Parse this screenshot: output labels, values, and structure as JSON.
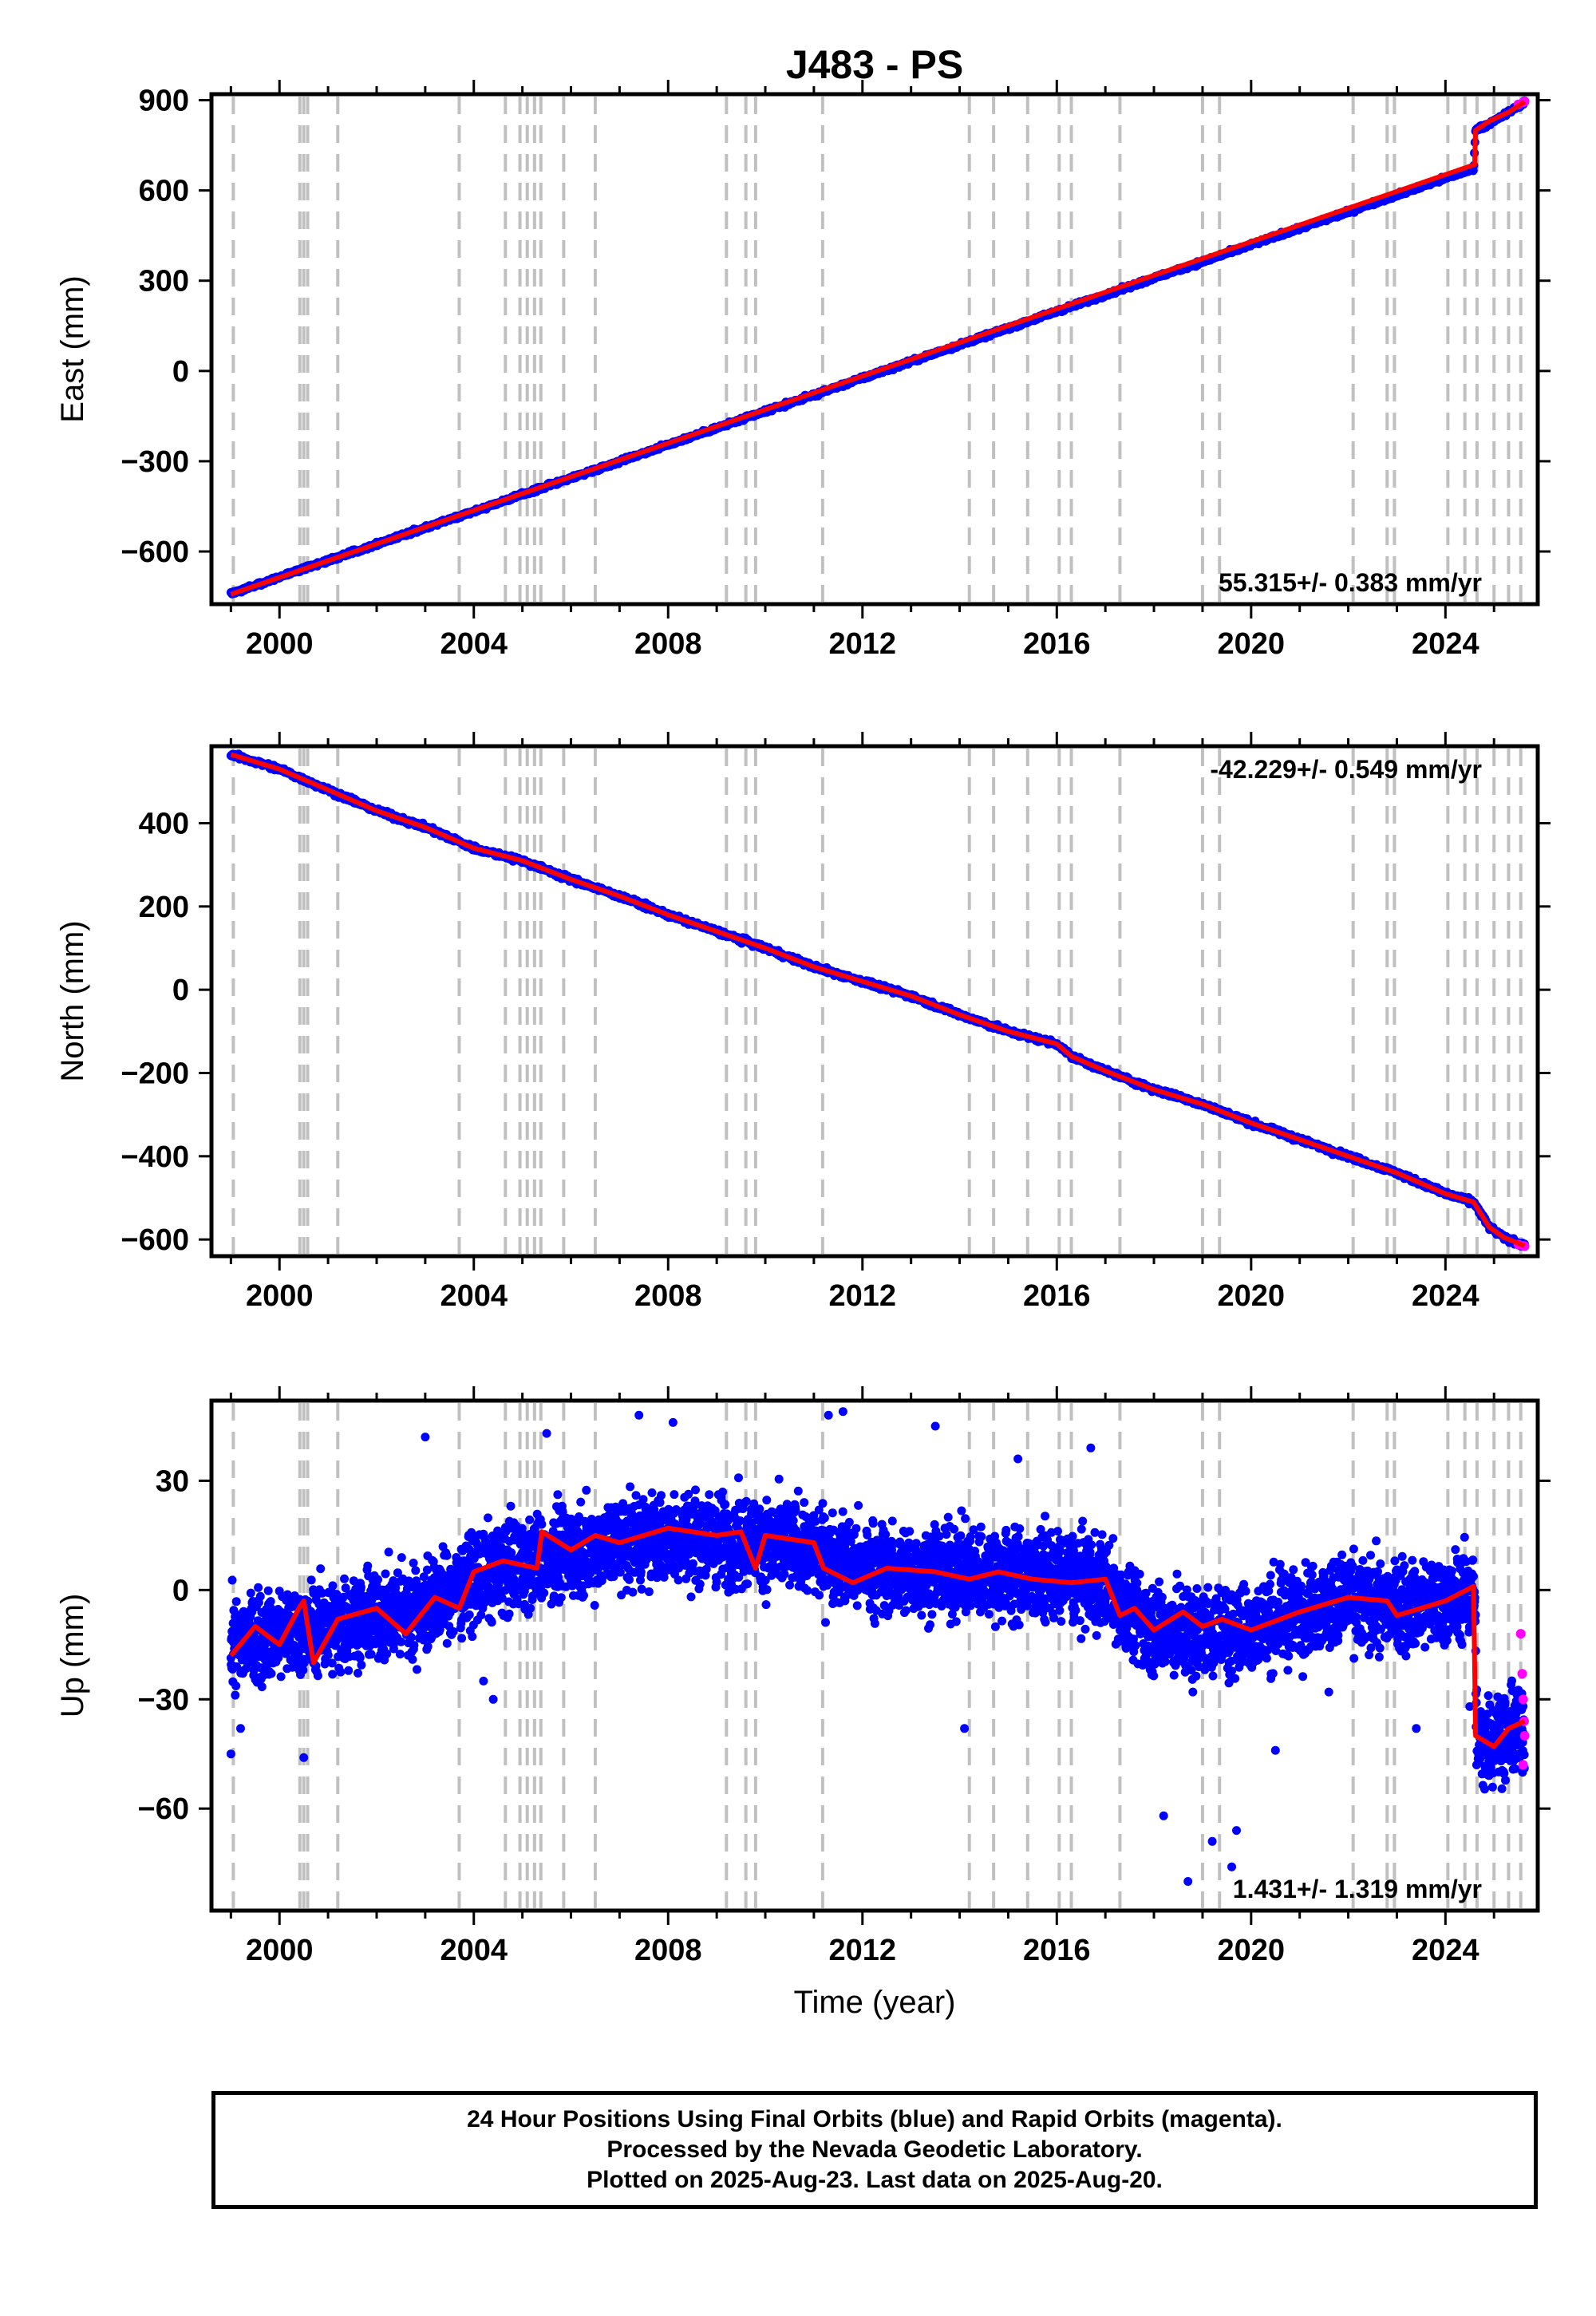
{
  "title": "J483 - PS",
  "xlabel": "Time (year)",
  "caption": {
    "line1": "24 Hour Positions Using Final Orbits (blue) and Rapid Orbits (magenta).",
    "line2": "Processed by the Nevada Geodetic Laboratory.",
    "line3": "Plotted on 2025-Aug-23. Last data on 2025-Aug-20."
  },
  "colors": {
    "final_orbits": "#0000ff",
    "rapid_orbits": "#ff00ff",
    "model_fit": "#ff0000",
    "event_lines": "#c0c0c0",
    "axes": "#000000"
  },
  "chart_data": [
    {
      "type": "scatter",
      "component": "East",
      "ylabel": "East (mm)",
      "xlim": [
        1998.6,
        2025.9
      ],
      "ylim": [
        -775,
        920
      ],
      "xticks": [
        2000,
        2004,
        2008,
        2012,
        2016,
        2020,
        2024
      ],
      "yticks": [
        -600,
        -300,
        0,
        300,
        600,
        900
      ],
      "ytick_labels": [
        "−600",
        "−300",
        "0",
        "300",
        "600",
        "900"
      ],
      "velocity_label": "55.315+/- 0.383 mm/yr",
      "velocity_label_position": "bottom-right",
      "series_points": [
        [
          1999.0,
          -740
        ],
        [
          2000.0,
          -685
        ],
        [
          2004.0,
          -466
        ],
        [
          2008.0,
          -245
        ],
        [
          2012.0,
          -24
        ],
        [
          2016.0,
          198
        ],
        [
          2020.0,
          419
        ],
        [
          2024.0,
          640
        ],
        [
          2024.58,
          672
        ],
        [
          2024.62,
          800
        ],
        [
          2025.0,
          830
        ],
        [
          2025.5,
          880
        ],
        [
          2025.63,
          895
        ]
      ],
      "model_fit": [
        [
          1999.0,
          -742
        ],
        [
          2024.6,
          686
        ],
        [
          2024.62,
          800
        ],
        [
          2024.9,
          830
        ],
        [
          2025.3,
          860
        ],
        [
          2025.63,
          895
        ]
      ],
      "rapid_orbit_points": [
        [
          2025.5,
          886
        ],
        [
          2025.6,
          893
        ],
        [
          2025.63,
          896
        ]
      ],
      "event_lines": [
        1999.05,
        2000.42,
        2000.5,
        2000.58,
        2001.2,
        2003.7,
        2004.65,
        2004.95,
        2005.1,
        2005.25,
        2005.38,
        2005.85,
        2006.5,
        2009.2,
        2009.6,
        2009.8,
        2011.18,
        2014.2,
        2014.7,
        2015.4,
        2016.05,
        2016.3,
        2017.3,
        2019.0,
        2019.35,
        2022.1,
        2022.8,
        2022.95,
        2024.05,
        2024.4,
        2024.65,
        2025.0,
        2025.3,
        2025.55
      ]
    },
    {
      "type": "scatter",
      "component": "North",
      "ylabel": "North (mm)",
      "xlim": [
        1998.6,
        2025.9
      ],
      "ylim": [
        -640,
        585
      ],
      "xticks": [
        2000,
        2004,
        2008,
        2012,
        2016,
        2020,
        2024
      ],
      "yticks": [
        -600,
        -400,
        -200,
        0,
        200,
        400
      ],
      "ytick_labels": [
        "−600",
        "−400",
        "−200",
        "0",
        "200",
        "400"
      ],
      "velocity_label": "-42.229+/- 0.549 mm/yr",
      "velocity_label_position": "top-right",
      "series_points": [
        [
          1999.0,
          565
        ],
        [
          2000.0,
          530
        ],
        [
          2001.0,
          480
        ],
        [
          2002.0,
          430
        ],
        [
          2003.0,
          390
        ],
        [
          2004.0,
          340
        ],
        [
          2005.0,
          310
        ],
        [
          2006.0,
          265
        ],
        [
          2007.0,
          225
        ],
        [
          2008.0,
          180
        ],
        [
          2009.0,
          140
        ],
        [
          2010.0,
          100
        ],
        [
          2011.0,
          55
        ],
        [
          2012.0,
          20
        ],
        [
          2013.0,
          -15
        ],
        [
          2014.0,
          -60
        ],
        [
          2015.0,
          -100
        ],
        [
          2016.0,
          -130
        ],
        [
          2016.3,
          -160
        ],
        [
          2017.0,
          -195
        ],
        [
          2018.0,
          -240
        ],
        [
          2019.0,
          -275
        ],
        [
          2020.0,
          -320
        ],
        [
          2021.0,
          -360
        ],
        [
          2022.0,
          -400
        ],
        [
          2023.0,
          -440
        ],
        [
          2024.0,
          -490
        ],
        [
          2024.58,
          -510
        ],
        [
          2024.9,
          -570
        ],
        [
          2025.2,
          -595
        ],
        [
          2025.63,
          -615
        ]
      ],
      "model_fit": [
        [
          1999.0,
          565
        ],
        [
          2000.0,
          530
        ],
        [
          2001.0,
          480
        ],
        [
          2002.0,
          430
        ],
        [
          2003.0,
          390
        ],
        [
          2004.0,
          340
        ],
        [
          2005.0,
          310
        ],
        [
          2006.0,
          265
        ],
        [
          2007.0,
          225
        ],
        [
          2008.0,
          180
        ],
        [
          2009.0,
          140
        ],
        [
          2010.0,
          100
        ],
        [
          2011.0,
          55
        ],
        [
          2012.0,
          20
        ],
        [
          2013.0,
          -15
        ],
        [
          2014.0,
          -60
        ],
        [
          2015.0,
          -100
        ],
        [
          2016.0,
          -130
        ],
        [
          2016.3,
          -160
        ],
        [
          2017.0,
          -195
        ],
        [
          2018.0,
          -240
        ],
        [
          2019.0,
          -275
        ],
        [
          2020.0,
          -320
        ],
        [
          2021.0,
          -360
        ],
        [
          2022.0,
          -400
        ],
        [
          2023.0,
          -440
        ],
        [
          2024.0,
          -490
        ],
        [
          2024.58,
          -510
        ],
        [
          2024.9,
          -570
        ],
        [
          2025.2,
          -595
        ],
        [
          2025.63,
          -615
        ]
      ],
      "rapid_orbit_points": [
        [
          2025.5,
          -612
        ],
        [
          2025.6,
          -615
        ],
        [
          2025.63,
          -616
        ]
      ],
      "event_lines": [
        1999.05,
        2000.42,
        2000.5,
        2000.58,
        2001.2,
        2003.7,
        2004.65,
        2004.95,
        2005.1,
        2005.25,
        2005.38,
        2005.85,
        2006.5,
        2009.2,
        2009.6,
        2009.8,
        2011.18,
        2014.2,
        2014.7,
        2015.4,
        2016.05,
        2016.3,
        2017.3,
        2019.0,
        2019.35,
        2022.1,
        2022.8,
        2022.95,
        2024.05,
        2024.4,
        2024.65,
        2025.0,
        2025.3,
        2025.55
      ]
    },
    {
      "type": "scatter",
      "component": "Up",
      "ylabel": "Up (mm)",
      "xlim": [
        1998.6,
        2025.9
      ],
      "ylim": [
        -88,
        52
      ],
      "xticks": [
        2000,
        2004,
        2008,
        2012,
        2016,
        2020,
        2024
      ],
      "yticks": [
        -60,
        -30,
        0,
        30
      ],
      "ytick_labels": [
        "−60",
        "−30",
        "0",
        "30"
      ],
      "velocity_label": "1.431+/- 1.319 mm/yr",
      "velocity_label_position": "bottom-right",
      "model_fit": [
        [
          1999.0,
          -18
        ],
        [
          1999.5,
          -10
        ],
        [
          2000.0,
          -15
        ],
        [
          2000.4,
          -5
        ],
        [
          2000.5,
          -3
        ],
        [
          2000.7,
          -20
        ],
        [
          2001.2,
          -8
        ],
        [
          2002.0,
          -5
        ],
        [
          2002.6,
          -12
        ],
        [
          2003.2,
          -2
        ],
        [
          2003.7,
          -5
        ],
        [
          2004.0,
          5
        ],
        [
          2004.6,
          8
        ],
        [
          2005.3,
          6
        ],
        [
          2005.4,
          16
        ],
        [
          2006.0,
          11
        ],
        [
          2006.5,
          15
        ],
        [
          2007.0,
          13
        ],
        [
          2008.0,
          17
        ],
        [
          2009.0,
          15
        ],
        [
          2009.5,
          16
        ],
        [
          2009.8,
          6
        ],
        [
          2010.0,
          15
        ],
        [
          2011.0,
          13
        ],
        [
          2011.2,
          6
        ],
        [
          2011.8,
          2
        ],
        [
          2012.5,
          6
        ],
        [
          2013.5,
          5
        ],
        [
          2014.2,
          3
        ],
        [
          2014.8,
          5
        ],
        [
          2015.5,
          3
        ],
        [
          2016.3,
          2
        ],
        [
          2017.0,
          3
        ],
        [
          2017.3,
          -7
        ],
        [
          2017.6,
          -5
        ],
        [
          2018.0,
          -11
        ],
        [
          2018.6,
          -6
        ],
        [
          2019.0,
          -10
        ],
        [
          2019.4,
          -8
        ],
        [
          2020.0,
          -11
        ],
        [
          2021.0,
          -6
        ],
        [
          2022.0,
          -2
        ],
        [
          2022.8,
          -3
        ],
        [
          2023.0,
          -7
        ],
        [
          2024.0,
          -3
        ],
        [
          2024.58,
          1
        ],
        [
          2024.62,
          -40
        ],
        [
          2025.0,
          -43
        ],
        [
          2025.3,
          -38
        ],
        [
          2025.63,
          -36
        ]
      ],
      "scatter_band_mean": [
        [
          1999.0,
          -15
        ],
        [
          2000.0,
          -12
        ],
        [
          2001.0,
          -10
        ],
        [
          2002.0,
          -7
        ],
        [
          2003.0,
          -5
        ],
        [
          2004.0,
          3
        ],
        [
          2005.0,
          7
        ],
        [
          2006.0,
          11
        ],
        [
          2007.0,
          13
        ],
        [
          2008.0,
          15
        ],
        [
          2009.0,
          14
        ],
        [
          2010.0,
          13
        ],
        [
          2011.0,
          11
        ],
        [
          2012.0,
          6
        ],
        [
          2013.0,
          5
        ],
        [
          2014.0,
          5
        ],
        [
          2015.0,
          4
        ],
        [
          2016.0,
          4
        ],
        [
          2017.0,
          2
        ],
        [
          2017.4,
          -5
        ],
        [
          2018.0,
          -11
        ],
        [
          2019.0,
          -12
        ],
        [
          2020.0,
          -11
        ],
        [
          2021.0,
          -6
        ],
        [
          2022.0,
          -3
        ],
        [
          2023.0,
          -5
        ],
        [
          2024.0,
          -3
        ],
        [
          2024.6,
          -1
        ],
        [
          2024.65,
          -42
        ],
        [
          2025.63,
          -38
        ]
      ],
      "scatter_band_spread_mm": 10,
      "outliers": [
        [
          2003.0,
          42
        ],
        [
          2004.2,
          -25
        ],
        [
          2004.4,
          -30
        ],
        [
          2005.5,
          43
        ],
        [
          2007.4,
          48
        ],
        [
          2008.1,
          46
        ],
        [
          2011.3,
          48
        ],
        [
          2011.6,
          49
        ],
        [
          2013.5,
          45
        ],
        [
          2014.1,
          -38
        ],
        [
          2015.2,
          36
        ],
        [
          2016.7,
          39
        ],
        [
          2018.8,
          -28
        ],
        [
          2019.2,
          -69
        ],
        [
          2019.6,
          -76
        ],
        [
          2019.7,
          -66
        ],
        [
          2020.5,
          -44
        ],
        [
          2021.6,
          -28
        ],
        [
          2023.4,
          -38
        ],
        [
          2024.5,
          -32
        ],
        [
          2000.5,
          -46
        ],
        [
          1999.0,
          -45
        ],
        [
          1999.2,
          -38
        ],
        [
          2018.2,
          -62
        ],
        [
          2018.7,
          -80
        ]
      ],
      "rapid_orbit_points": [
        [
          2025.55,
          -12
        ],
        [
          2025.58,
          -23
        ],
        [
          2025.6,
          -30
        ],
        [
          2025.62,
          -36
        ],
        [
          2025.63,
          -40
        ],
        [
          2025.6,
          -48
        ]
      ],
      "event_lines": [
        1999.05,
        2000.42,
        2000.5,
        2000.58,
        2001.2,
        2003.7,
        2004.65,
        2004.95,
        2005.1,
        2005.25,
        2005.38,
        2005.85,
        2006.5,
        2009.2,
        2009.6,
        2009.8,
        2011.18,
        2014.2,
        2014.7,
        2015.4,
        2016.05,
        2016.3,
        2017.3,
        2019.0,
        2019.35,
        2022.1,
        2022.8,
        2022.95,
        2024.05,
        2024.4,
        2024.65,
        2025.0,
        2025.3,
        2025.55
      ]
    }
  ]
}
